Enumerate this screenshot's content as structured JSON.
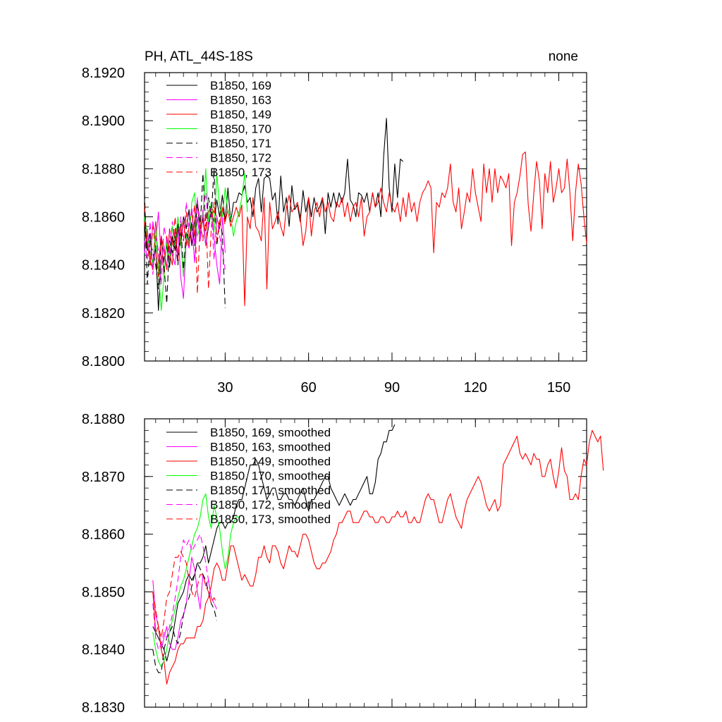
{
  "chart_data": [
    {
      "type": "line",
      "title": "PH, ATL_44S-18S",
      "title_right": "none",
      "xlabel": "",
      "ylabel": "",
      "xlim": [
        1,
        160
      ],
      "ylim": [
        8.18,
        8.192
      ],
      "xticks": [
        30,
        60,
        90,
        120,
        150
      ],
      "xtick_labels": [
        "30",
        "60",
        "90",
        "120",
        "150"
      ],
      "yticks": [
        8.18,
        8.182,
        8.184,
        8.186,
        8.188,
        8.19,
        8.192
      ],
      "ytick_labels": [
        "8.1800",
        "8.1820",
        "8.1840",
        "8.1860",
        "8.1880",
        "8.1900",
        "8.1920"
      ],
      "grid": false,
      "legend_position": "top-left",
      "series": [
        {
          "name": "B1850, 169",
          "color": "#000000",
          "dash": "solid",
          "x_start": 1,
          "values": [
            8.1857,
            8.1846,
            8.1853,
            8.1838,
            8.1848,
            8.1821,
            8.1843,
            8.1842,
            8.1848,
            8.1839,
            8.1852,
            8.1846,
            8.1857,
            8.1848,
            8.186,
            8.1855,
            8.1863,
            8.1848,
            8.1858,
            8.1867,
            8.1852,
            8.186,
            8.1848,
            8.1856,
            8.1862,
            8.1858,
            8.1867,
            8.186,
            8.1869,
            8.1858,
            8.1872,
            8.1858,
            8.1866,
            8.1866,
            8.187,
            8.1869,
            8.1873,
            8.1866,
            8.1868,
            8.186,
            8.1872,
            8.1876,
            8.1862,
            8.1876,
            8.1877,
            8.1876,
            8.1867,
            8.187,
            8.1857,
            8.1877,
            8.1862,
            8.1868,
            8.1856,
            8.1873,
            8.1863,
            8.1865,
            8.1858,
            8.1871,
            8.1862,
            8.1868,
            8.186,
            8.1868,
            8.1862,
            8.1864,
            8.1868,
            8.1853,
            8.187,
            8.1864,
            8.187,
            8.1864,
            8.187,
            8.1866,
            8.187,
            8.1884,
            8.1867,
            8.1865,
            8.186,
            8.187,
            8.1869,
            8.1866,
            8.187,
            8.1862,
            8.187,
            8.1864,
            8.187,
            8.186,
            8.1885,
            8.1901,
            8.1872,
            8.1862,
            8.1882,
            8.1868,
            8.1884,
            8.1883
          ]
        },
        {
          "name": "B1850, 163",
          "color": "#ff00ff",
          "dash": "solid",
          "x_start": 1,
          "values": [
            8.1845,
            8.1855,
            8.184,
            8.1858,
            8.185,
            8.1862,
            8.1842,
            8.1848,
            8.1838,
            8.1855,
            8.1844,
            8.184,
            8.1855,
            8.1835,
            8.1826,
            8.1851,
            8.1847,
            8.1857,
            8.1841,
            8.186,
            8.185,
            8.1863,
            8.1848,
            8.1858,
            8.1866,
            8.1851,
            8.184,
            8.1832,
            8.186,
            8.1845
          ]
        },
        {
          "name": "B1850, 149",
          "color": "#ff0000",
          "dash": "solid",
          "x_start": 1,
          "values": [
            8.1865,
            8.1848,
            8.1842,
            8.1838,
            8.1858,
            8.184,
            8.1852,
            8.1835,
            8.1852,
            8.1845,
            8.184,
            8.1855,
            8.1843,
            8.1852,
            8.1858,
            8.1848,
            8.1856,
            8.1862,
            8.1852,
            8.1866,
            8.1858,
            8.1858,
            8.1854,
            8.1862,
            8.1864,
            8.1862,
            8.186,
            8.1855,
            8.1864,
            8.1858,
            8.1863,
            8.1856,
            8.186,
            8.1864,
            8.186,
            8.1865,
            8.1823,
            8.186,
            8.1855,
            8.1868,
            8.1856,
            8.1854,
            8.185,
            8.1868,
            8.183,
            8.1866,
            8.1855,
            8.1858,
            8.1862,
            8.1856,
            8.1852,
            8.1864,
            8.1869,
            8.1862,
            8.1864,
            8.1866,
            8.186,
            8.1848,
            8.1854,
            8.1868,
            8.1852,
            8.1862,
            8.1866,
            8.186,
            8.1868,
            8.1862,
            8.1866,
            8.186,
            8.1858,
            8.1866,
            8.1864,
            8.1868,
            8.186,
            8.1866,
            8.1858,
            8.1864,
            8.1866,
            8.186,
            8.1868,
            8.1852,
            8.186,
            8.1862,
            8.187,
            8.1864,
            8.1866,
            8.1872,
            8.1866,
            8.1862,
            8.187,
            8.1864,
            8.1862,
            8.1866,
            8.1858,
            8.1868,
            8.186,
            8.187,
            8.1862,
            8.1866,
            8.1858,
            8.1866,
            8.187,
            8.1872,
            8.1875,
            8.1872,
            8.1845,
            8.1866,
            8.1864,
            8.187,
            8.1868,
            8.1872,
            8.1882,
            8.1866,
            8.1862,
            8.1872,
            8.1855,
            8.1862,
            8.187,
            8.1866,
            8.188,
            8.187,
            8.1864,
            8.1858,
            8.1882,
            8.187,
            8.188,
            8.1866,
            8.188,
            8.187,
            8.1877,
            8.1875,
            8.1872,
            8.1878,
            8.1848,
            8.1866,
            8.187,
            8.1877,
            8.1886,
            8.1887,
            8.1865,
            8.1854,
            8.187,
            8.1883,
            8.1875,
            8.1855,
            8.1878,
            8.187,
            8.1883,
            8.1866,
            8.1872,
            8.188,
            8.187,
            8.1872,
            8.1884,
            8.187,
            8.185,
            8.187,
            8.1882,
            8.1874,
            8.186,
            8.1849
          ]
        },
        {
          "name": "B1850, 170",
          "color": "#00ff00",
          "dash": "solid",
          "x_start": 1,
          "values": [
            8.186,
            8.1852,
            8.1845,
            8.184,
            8.1856,
            8.1838,
            8.1821,
            8.1835,
            8.185,
            8.1842,
            8.1856,
            8.1848,
            8.186,
            8.185,
            8.1835,
            8.1853,
            8.1848,
            8.1866,
            8.187,
            8.1852,
            8.1856,
            8.186,
            8.188,
            8.1858,
            8.1866,
            8.1854,
            8.1878,
            8.1864,
            8.186,
            8.1872,
            8.1862,
            8.186,
            8.1852,
            8.1858,
            8.1862,
            8.1868,
            8.1878,
            8.1862
          ]
        },
        {
          "name": "B1850, 171",
          "color": "#000000",
          "dash": "dashed",
          "x_start": 1,
          "values": [
            8.187,
            8.1832,
            8.185,
            8.1845,
            8.184,
            8.183,
            8.1852,
            8.184,
            8.1824,
            8.185,
            8.1845,
            8.1852,
            8.184,
            8.1857,
            8.1838,
            8.1854,
            8.185,
            8.1858,
            8.1848,
            8.1866,
            8.1855,
            8.1878,
            8.1856,
            8.1868,
            8.186,
            8.188,
            8.1848,
            8.1858,
            8.1853,
            8.1822
          ]
        },
        {
          "name": "B1850, 172",
          "color": "#ff00ff",
          "dash": "dashed",
          "x_start": 1,
          "values": [
            8.185,
            8.1842,
            8.1858,
            8.1836,
            8.1852,
            8.1846,
            8.1832,
            8.1856,
            8.185,
            8.1842,
            8.1858,
            8.185,
            8.1844,
            8.186,
            8.185,
            8.1866,
            8.1855,
            8.1864,
            8.1848,
            8.1868,
            8.1852,
            8.1862,
            8.187,
            8.1856,
            8.1864,
            8.1842,
            8.186,
            8.1852,
            8.1846,
            8.1838
          ]
        },
        {
          "name": "B1850, 173",
          "color": "#ff0000",
          "dash": "dashed",
          "x_start": 1,
          "values": [
            8.1858,
            8.185,
            8.184,
            8.1856,
            8.1846,
            8.1835,
            8.1852,
            8.1846,
            8.1838,
            8.1855,
            8.1848,
            8.186,
            8.1842,
            8.1856,
            8.185,
            8.1862,
            8.1848,
            8.1856,
            8.1865,
            8.1828,
            8.1858,
            8.185,
            8.1862,
            8.183,
            8.1855,
            8.1866,
            8.185,
            8.1858,
            8.1864,
            8.1856
          ]
        }
      ]
    },
    {
      "type": "line",
      "title": "",
      "xlabel": "",
      "ylabel": "",
      "xlim": [
        1,
        160
      ],
      "ylim": [
        8.183,
        8.188
      ],
      "xticks": [
        30,
        60,
        90,
        120,
        150
      ],
      "yticks": [
        8.183,
        8.184,
        8.185,
        8.186,
        8.187,
        8.188
      ],
      "ytick_labels": [
        "8.1830",
        "8.1840",
        "8.1850",
        "8.1860",
        "8.1870",
        "8.1880"
      ],
      "grid": false,
      "legend_position": "top-left",
      "series": [
        {
          "name": "B1850, 169, smoothed",
          "color": "#000000",
          "dash": "solid",
          "x_start": 4,
          "values": [
            8.1844,
            8.1843,
            8.1842,
            8.1841,
            8.184,
            8.1838,
            8.184,
            8.1842,
            8.1845,
            8.1848,
            8.1849,
            8.185,
            8.1852,
            8.1853,
            8.1852,
            8.1853,
            8.1855,
            8.1855,
            8.1856,
            8.1858,
            8.1855,
            8.1857,
            8.1859,
            8.1861,
            8.1862,
            8.1862,
            8.1861,
            8.1862,
            8.1862,
            8.1863,
            8.1865,
            8.1866,
            8.1866,
            8.1868,
            8.187,
            8.1872,
            8.1872,
            8.1873,
            8.1872,
            8.187,
            8.1868,
            8.1866,
            8.1867,
            8.1868,
            8.1868,
            8.1866,
            8.1866,
            8.1867,
            8.1867,
            8.1866,
            8.1866,
            8.1865,
            8.1866,
            8.1867,
            8.1868,
            8.1866,
            8.1864,
            8.1866,
            8.1866,
            8.1867,
            8.1868,
            8.1869,
            8.187,
            8.187,
            8.1868,
            8.1867,
            8.1866,
            8.1865,
            8.1866,
            8.1867,
            8.1866,
            8.1865,
            8.1866,
            8.1866,
            8.1867,
            8.1868,
            8.1869,
            8.187,
            8.1867,
            8.1867,
            8.1869,
            8.1873,
            8.1874,
            8.1876,
            8.1876,
            8.1878,
            8.1878,
            8.1879
          ]
        },
        {
          "name": "B1850, 163, smoothed",
          "color": "#ff00ff",
          "dash": "solid",
          "x_start": 4,
          "values": [
            8.1852,
            8.1846,
            8.1844,
            8.184,
            8.1842,
            8.1844,
            8.1841,
            8.184,
            8.184,
            8.1842,
            8.1845,
            8.1846,
            8.1848,
            8.1852,
            8.1856,
            8.1854,
            8.185,
            8.1847,
            8.1853,
            8.1851,
            8.1852,
            8.1849,
            8.1848
          ]
        },
        {
          "name": "B1850, 149, smoothed",
          "color": "#ff0000",
          "dash": "solid",
          "x_start": 4,
          "values": [
            8.185,
            8.1843,
            8.1844,
            8.184,
            8.1838,
            8.1834,
            8.1836,
            8.1837,
            8.1838,
            8.184,
            8.1841,
            8.1841,
            8.1842,
            8.1842,
            8.1842,
            8.1842,
            8.1844,
            8.1844,
            8.1845,
            8.1848,
            8.1849,
            8.1851,
            8.1854,
            8.1855,
            8.1854,
            8.1852,
            8.1852,
            8.1855,
            8.1858,
            8.1858,
            8.1856,
            8.1854,
            8.1852,
            8.1853,
            8.1852,
            8.1851,
            8.1851,
            8.1853,
            8.1856,
            8.1856,
            8.1858,
            8.1856,
            8.1855,
            8.1858,
            8.1858,
            8.1857,
            8.1855,
            8.1854,
            8.1856,
            8.1858,
            8.1857,
            8.1857,
            8.1856,
            8.1858,
            8.186,
            8.186,
            8.1859,
            8.1857,
            8.1855,
            8.1854,
            8.1854,
            8.1855,
            8.1855,
            8.1856,
            8.1857,
            8.1859,
            8.186,
            8.1862,
            8.1862,
            8.1863,
            8.1864,
            8.1864,
            8.1862,
            8.1862,
            8.1862,
            8.1863,
            8.1864,
            8.1864,
            8.1863,
            8.1863,
            8.1862,
            8.1862,
            8.1863,
            8.1863,
            8.1862,
            8.1862,
            8.1863,
            8.1863,
            8.1864,
            8.1863,
            8.1863,
            8.1864,
            8.1862,
            8.1862,
            8.1863,
            8.1862,
            8.1862,
            8.1864,
            8.1866,
            8.1867,
            8.1866,
            8.1866,
            8.1864,
            8.1862,
            8.1862,
            8.1864,
            8.1866,
            8.1867,
            8.1865,
            8.1863,
            8.1862,
            8.1861,
            8.1864,
            8.1866,
            8.1867,
            8.1868,
            8.1869,
            8.187,
            8.1869,
            8.1867,
            8.1865,
            8.1864,
            8.1865,
            8.1866,
            8.1864,
            8.1865,
            8.1872,
            8.1873,
            8.1874,
            8.1875,
            8.1876,
            8.1877,
            8.1874,
            8.1873,
            8.1874,
            8.1873,
            8.1872,
            8.1874,
            8.1873,
            8.1873,
            8.187,
            8.187,
            8.1872,
            8.1873,
            8.187,
            8.1868,
            8.1871,
            8.1875,
            8.1871,
            8.187,
            8.1866,
            8.1866,
            8.1867,
            8.1866,
            8.187,
            8.1873,
            8.1872,
            8.1876,
            8.1878,
            8.1877,
            8.1876,
            8.1877,
            8.1871
          ]
        },
        {
          "name": "B1850, 170, smoothed",
          "color": "#00ff00",
          "dash": "solid",
          "x_start": 4,
          "values": [
            8.1843,
            8.184,
            8.1838,
            8.1837,
            8.1838,
            8.184,
            8.1843,
            8.1845,
            8.1847,
            8.1849,
            8.1851,
            8.1852,
            8.1854,
            8.1856,
            8.1858,
            8.186,
            8.1861,
            8.1863,
            8.1866,
            8.1867,
            8.1863,
            8.1861,
            8.1865,
            8.1863,
            8.1861,
            8.1857,
            8.1854,
            8.1856,
            8.186,
            8.1862,
            8.1863,
            8.1863
          ]
        },
        {
          "name": "B1850, 171, smoothed",
          "color": "#000000",
          "dash": "dashed",
          "x_start": 4,
          "values": [
            8.184,
            8.1837,
            8.1836,
            8.1836,
            8.184,
            8.1842,
            8.1843,
            8.1844,
            8.1842,
            8.1841,
            8.1843,
            8.1846,
            8.1848,
            8.1849,
            8.1851,
            8.1853,
            8.1855,
            8.1854,
            8.1853,
            8.1852,
            8.185,
            8.1848,
            8.1847,
            8.1845
          ]
        },
        {
          "name": "B1850, 172, smoothed",
          "color": "#ff00ff",
          "dash": "dashed",
          "x_start": 4,
          "values": [
            8.1848,
            8.1842,
            8.184,
            8.1841,
            8.1843,
            8.1842,
            8.1844,
            8.1846,
            8.1849,
            8.1852,
            8.1856,
            8.1859,
            8.1858,
            8.1859,
            8.1857,
            8.1858,
            8.1859,
            8.186,
            8.1858,
            8.1855,
            8.1852,
            8.1849,
            8.1848,
            8.1847
          ]
        },
        {
          "name": "B1850, 173, smoothed",
          "color": "#ff0000",
          "dash": "dashed",
          "x_start": 4,
          "values": [
            8.185,
            8.1847,
            8.1844,
            8.1842,
            8.1845,
            8.1849,
            8.185,
            8.1853,
            8.1856,
            8.1856,
            8.1857,
            8.1856,
            8.1855,
            8.1852,
            8.185,
            8.1849,
            8.1851,
            8.1853,
            8.1853,
            8.1851,
            8.185,
            8.1848,
            8.1849,
            8.1848
          ]
        }
      ]
    }
  ]
}
